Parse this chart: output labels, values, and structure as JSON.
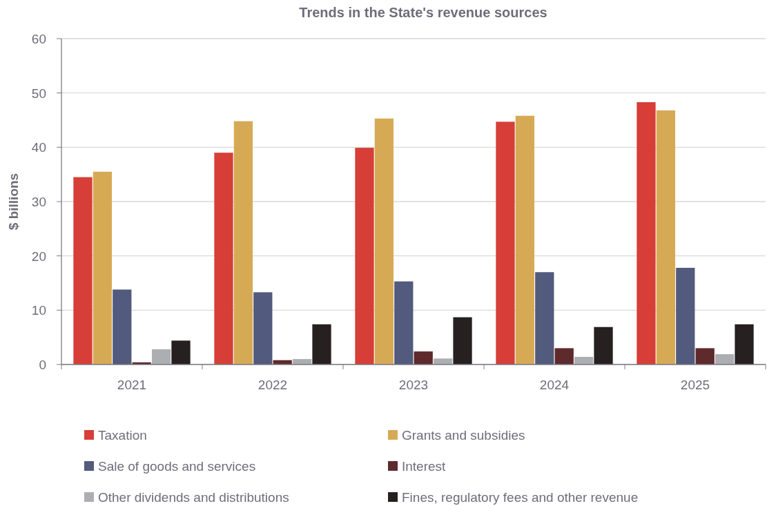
{
  "chart_data": {
    "type": "bar",
    "title": "Trends in the State's revenue sources",
    "ylabel": "$ billions",
    "categories": [
      "2021",
      "2022",
      "2023",
      "2024",
      "2025"
    ],
    "series": [
      {
        "name": "Taxation",
        "color": "#d63e37",
        "values": [
          34.5,
          39.0,
          39.9,
          44.7,
          48.3
        ]
      },
      {
        "name": "Grants and subsidies",
        "color": "#d6aa55",
        "values": [
          35.5,
          44.8,
          45.3,
          45.8,
          46.8
        ]
      },
      {
        "name": "Sale of goods and services",
        "color": "#525b7d",
        "values": [
          13.8,
          13.3,
          15.3,
          17.0,
          17.8
        ]
      },
      {
        "name": "Interest",
        "color": "#5e2a2b",
        "values": [
          0.4,
          0.8,
          2.4,
          3.0,
          3.0
        ]
      },
      {
        "name": "Other dividends and distributions",
        "color": "#adaeb2",
        "values": [
          2.8,
          1.0,
          1.1,
          1.4,
          1.9
        ]
      },
      {
        "name": "Fines, regulatory fees and other revenue",
        "color": "#262020",
        "values": [
          4.4,
          7.4,
          8.7,
          6.9,
          7.4
        ]
      }
    ],
    "ylim": [
      0,
      60
    ],
    "yticks": [
      0,
      10,
      20,
      30,
      40,
      50,
      60
    ],
    "grid": "y",
    "legend": "bottom"
  }
}
